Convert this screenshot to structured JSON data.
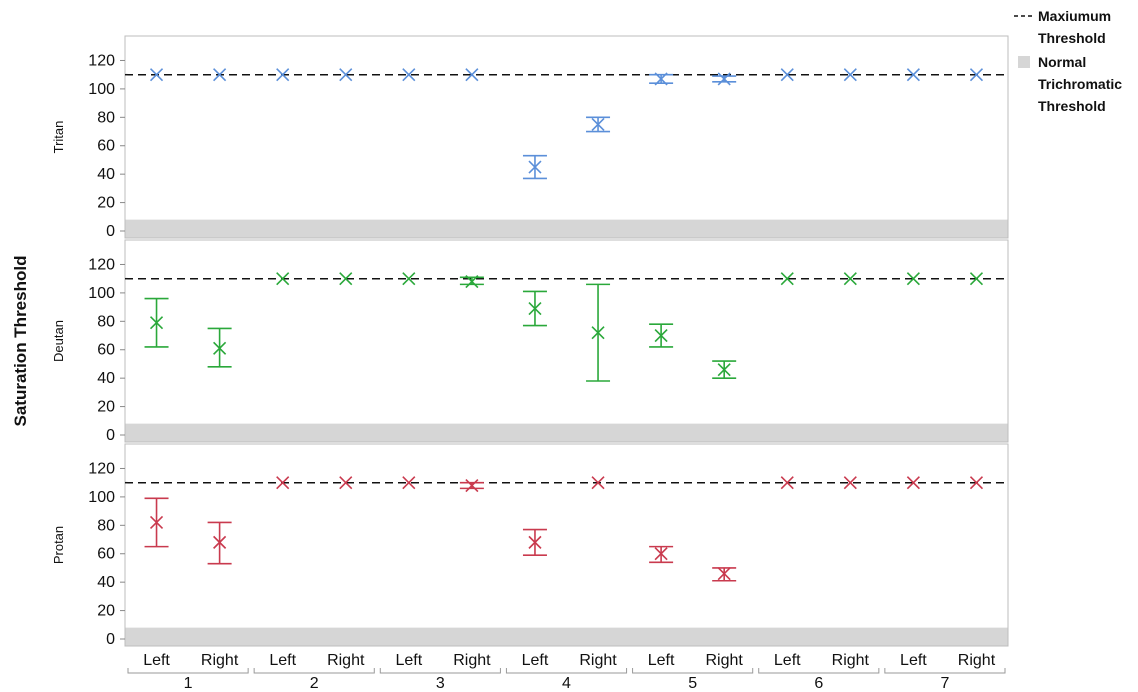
{
  "chart_data": {
    "type": "scatter",
    "ylabel": "Saturation Threshold",
    "ylim": [
      0,
      130
    ],
    "yticks": [
      0,
      20,
      40,
      60,
      80,
      100,
      120
    ],
    "grid": false,
    "legend_position": "top-right",
    "legend": [
      {
        "label_lines": [
          "Maxiumum",
          "Threshold"
        ],
        "symbol": "dashed-line"
      },
      {
        "label_lines": [
          "Normal",
          "Trichromatic",
          "Threshold"
        ],
        "symbol": "gray-band"
      }
    ],
    "max_threshold": 110,
    "normal_band": [
      0,
      8
    ],
    "categories": [
      {
        "group": "1",
        "eye": "Left"
      },
      {
        "group": "1",
        "eye": "Right"
      },
      {
        "group": "2",
        "eye": "Left"
      },
      {
        "group": "2",
        "eye": "Right"
      },
      {
        "group": "3",
        "eye": "Left"
      },
      {
        "group": "3",
        "eye": "Right"
      },
      {
        "group": "4",
        "eye": "Left"
      },
      {
        "group": "4",
        "eye": "Right"
      },
      {
        "group": "5",
        "eye": "Left"
      },
      {
        "group": "5",
        "eye": "Right"
      },
      {
        "group": "6",
        "eye": "Left"
      },
      {
        "group": "6",
        "eye": "Right"
      },
      {
        "group": "7",
        "eye": "Left"
      },
      {
        "group": "7",
        "eye": "Right"
      }
    ],
    "groups": [
      "1",
      "2",
      "3",
      "4",
      "5",
      "6",
      "7"
    ],
    "panels": [
      {
        "name": "Tritan",
        "color": "#5b8fd9",
        "points": [
          {
            "y": 110,
            "low": null,
            "high": null
          },
          {
            "y": 110,
            "low": null,
            "high": null
          },
          {
            "y": 110,
            "low": null,
            "high": null
          },
          {
            "y": 110,
            "low": null,
            "high": null
          },
          {
            "y": 110,
            "low": null,
            "high": null
          },
          {
            "y": 110,
            "low": null,
            "high": null
          },
          {
            "y": 45,
            "low": 37,
            "high": 53
          },
          {
            "y": 75,
            "low": 70,
            "high": 80
          },
          {
            "y": 107,
            "low": 104,
            "high": 110
          },
          {
            "y": 107,
            "low": 105,
            "high": 109
          },
          {
            "y": 110,
            "low": null,
            "high": null
          },
          {
            "y": 110,
            "low": null,
            "high": null
          },
          {
            "y": 110,
            "low": null,
            "high": null
          },
          {
            "y": 110,
            "low": null,
            "high": null
          }
        ]
      },
      {
        "name": "Deutan",
        "color": "#2aa83a",
        "points": [
          {
            "y": 79,
            "low": 62,
            "high": 96
          },
          {
            "y": 61,
            "low": 48,
            "high": 75
          },
          {
            "y": 110,
            "low": null,
            "high": null
          },
          {
            "y": 110,
            "low": null,
            "high": null
          },
          {
            "y": 110,
            "low": null,
            "high": null
          },
          {
            "y": 108,
            "low": 106,
            "high": 111
          },
          {
            "y": 89,
            "low": 77,
            "high": 101
          },
          {
            "y": 72,
            "low": 38,
            "high": 106
          },
          {
            "y": 70,
            "low": 62,
            "high": 78
          },
          {
            "y": 46,
            "low": 40,
            "high": 52
          },
          {
            "y": 110,
            "low": null,
            "high": null
          },
          {
            "y": 110,
            "low": null,
            "high": null
          },
          {
            "y": 110,
            "low": null,
            "high": null
          },
          {
            "y": 110,
            "low": null,
            "high": null
          }
        ]
      },
      {
        "name": "Protan",
        "color": "#c93a4e",
        "points": [
          {
            "y": 82,
            "low": 65,
            "high": 99
          },
          {
            "y": 68,
            "low": 53,
            "high": 82
          },
          {
            "y": 110,
            "low": null,
            "high": null
          },
          {
            "y": 110,
            "low": null,
            "high": null
          },
          {
            "y": 110,
            "low": null,
            "high": null
          },
          {
            "y": 108,
            "low": 106,
            "high": 110
          },
          {
            "y": 68,
            "low": 59,
            "high": 77
          },
          {
            "y": 110,
            "low": null,
            "high": null
          },
          {
            "y": 60,
            "low": 54,
            "high": 65
          },
          {
            "y": 46,
            "low": 41,
            "high": 50
          },
          {
            "y": 110,
            "low": null,
            "high": null
          },
          {
            "y": 110,
            "low": null,
            "high": null
          },
          {
            "y": 110,
            "low": null,
            "high": null
          },
          {
            "y": 110,
            "low": null,
            "high": null
          }
        ]
      }
    ]
  }
}
